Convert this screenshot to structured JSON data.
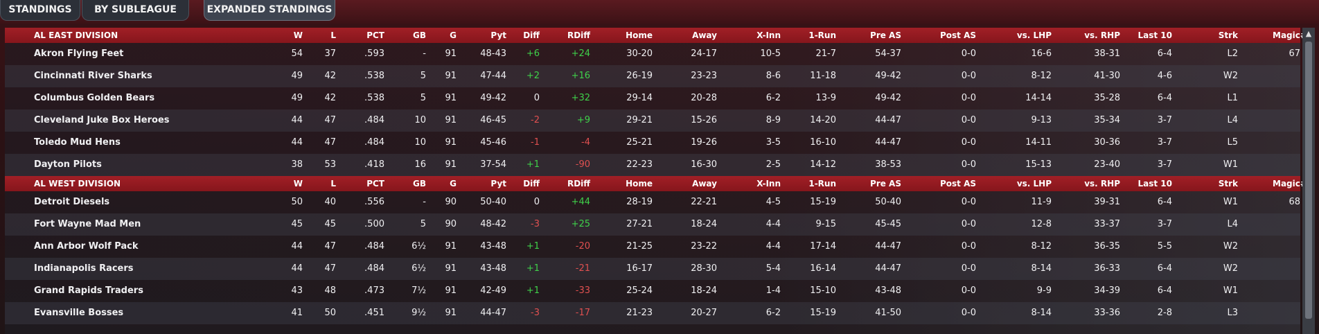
{
  "tabs": [
    {
      "label": "STANDINGS"
    },
    {
      "label": "BY SUBLEAGUE"
    },
    {
      "label": "EXPANDED STANDINGS"
    }
  ],
  "columns": [
    "W",
    "L",
    "PCT",
    "GB",
    "G",
    "Pyt",
    "Diff",
    "RDiff",
    "Home",
    "Away",
    "X-Inn",
    "1-Run",
    "Pre AS",
    "Post AS",
    "vs. LHP",
    "vs. RHP",
    "Last 10",
    "Strk",
    "Magic#"
  ],
  "scroll_up_icon": "chevron-up-icon",
  "colors": {
    "positive": "#3fd14a",
    "negative": "#e05050",
    "header": "#a11f26"
  },
  "divisions": [
    {
      "name": "AL EAST DIVISION",
      "teams": [
        {
          "team": "Akron  Flying Feet",
          "W": "54",
          "L": "37",
          "PCT": ".593",
          "GB": "-",
          "G": "91",
          "Pyt": "48-43",
          "Diff": "+6",
          "RDiff": "+24",
          "Home": "30-20",
          "Away": "24-17",
          "XInn": "10-5",
          "OneRun": "21-7",
          "PreAS": "54-37",
          "PostAS": "0-0",
          "vsLHP": "16-6",
          "vsRHP": "38-31",
          "Last10": "6-4",
          "Strk": "L2",
          "Magic": "67"
        },
        {
          "team": "Cincinnati River Sharks",
          "W": "49",
          "L": "42",
          "PCT": ".538",
          "GB": "5",
          "G": "91",
          "Pyt": "47-44",
          "Diff": "+2",
          "RDiff": "+16",
          "Home": "26-19",
          "Away": "23-23",
          "XInn": "8-6",
          "OneRun": "11-18",
          "PreAS": "49-42",
          "PostAS": "0-0",
          "vsLHP": "8-12",
          "vsRHP": "41-30",
          "Last10": "4-6",
          "Strk": "W2",
          "Magic": ""
        },
        {
          "team": "Columbus Golden Bears",
          "W": "49",
          "L": "42",
          "PCT": ".538",
          "GB": "5",
          "G": "91",
          "Pyt": "49-42",
          "Diff": "0",
          "RDiff": "+32",
          "Home": "29-14",
          "Away": "20-28",
          "XInn": "6-2",
          "OneRun": "13-9",
          "PreAS": "49-42",
          "PostAS": "0-0",
          "vsLHP": "14-14",
          "vsRHP": "35-28",
          "Last10": "6-4",
          "Strk": "L1",
          "Magic": ""
        },
        {
          "team": "Cleveland Juke Box Heroes",
          "W": "44",
          "L": "47",
          "PCT": ".484",
          "GB": "10",
          "G": "91",
          "Pyt": "46-45",
          "Diff": "-2",
          "RDiff": "+9",
          "Home": "29-21",
          "Away": "15-26",
          "XInn": "8-9",
          "OneRun": "14-20",
          "PreAS": "44-47",
          "PostAS": "0-0",
          "vsLHP": "9-13",
          "vsRHP": "35-34",
          "Last10": "3-7",
          "Strk": "L4",
          "Magic": ""
        },
        {
          "team": "Toledo  Mud Hens",
          "W": "44",
          "L": "47",
          "PCT": ".484",
          "GB": "10",
          "G": "91",
          "Pyt": "45-46",
          "Diff": "-1",
          "RDiff": "-4",
          "Home": "25-21",
          "Away": "19-26",
          "XInn": "3-5",
          "OneRun": "16-10",
          "PreAS": "44-47",
          "PostAS": "0-0",
          "vsLHP": "14-11",
          "vsRHP": "30-36",
          "Last10": "3-7",
          "Strk": "L5",
          "Magic": ""
        },
        {
          "team": "Dayton Pilots",
          "W": "38",
          "L": "53",
          "PCT": ".418",
          "GB": "16",
          "G": "91",
          "Pyt": "37-54",
          "Diff": "+1",
          "RDiff": "-90",
          "Home": "22-23",
          "Away": "16-30",
          "XInn": "2-5",
          "OneRun": "14-12",
          "PreAS": "38-53",
          "PostAS": "0-0",
          "vsLHP": "15-13",
          "vsRHP": "23-40",
          "Last10": "3-7",
          "Strk": "W1",
          "Magic": ""
        }
      ]
    },
    {
      "name": "AL WEST DIVISION",
      "teams": [
        {
          "team": "Detroit Diesels",
          "W": "50",
          "L": "40",
          "PCT": ".556",
          "GB": "-",
          "G": "90",
          "Pyt": "50-40",
          "Diff": "0",
          "RDiff": "+44",
          "Home": "28-19",
          "Away": "22-21",
          "XInn": "4-5",
          "OneRun": "15-19",
          "PreAS": "50-40",
          "PostAS": "0-0",
          "vsLHP": "11-9",
          "vsRHP": "39-31",
          "Last10": "6-4",
          "Strk": "W1",
          "Magic": "68"
        },
        {
          "team": "Fort Wayne Mad Men",
          "W": "45",
          "L": "45",
          "PCT": ".500",
          "GB": "5",
          "G": "90",
          "Pyt": "48-42",
          "Diff": "-3",
          "RDiff": "+25",
          "Home": "27-21",
          "Away": "18-24",
          "XInn": "4-4",
          "OneRun": "9-15",
          "PreAS": "45-45",
          "PostAS": "0-0",
          "vsLHP": "12-8",
          "vsRHP": "33-37",
          "Last10": "3-7",
          "Strk": "L4",
          "Magic": ""
        },
        {
          "team": "Ann Arbor Wolf Pack",
          "W": "44",
          "L": "47",
          "PCT": ".484",
          "GB": "6½",
          "G": "91",
          "Pyt": "43-48",
          "Diff": "+1",
          "RDiff": "-20",
          "Home": "21-25",
          "Away": "23-22",
          "XInn": "4-4",
          "OneRun": "17-14",
          "PreAS": "44-47",
          "PostAS": "0-0",
          "vsLHP": "8-12",
          "vsRHP": "36-35",
          "Last10": "5-5",
          "Strk": "W2",
          "Magic": ""
        },
        {
          "team": "Indianapolis Racers",
          "W": "44",
          "L": "47",
          "PCT": ".484",
          "GB": "6½",
          "G": "91",
          "Pyt": "43-48",
          "Diff": "+1",
          "RDiff": "-21",
          "Home": "16-17",
          "Away": "28-30",
          "XInn": "5-4",
          "OneRun": "16-14",
          "PreAS": "44-47",
          "PostAS": "0-0",
          "vsLHP": "8-14",
          "vsRHP": "36-33",
          "Last10": "6-4",
          "Strk": "W2",
          "Magic": ""
        },
        {
          "team": "Grand Rapids Traders",
          "W": "43",
          "L": "48",
          "PCT": ".473",
          "GB": "7½",
          "G": "91",
          "Pyt": "42-49",
          "Diff": "+1",
          "RDiff": "-33",
          "Home": "25-24",
          "Away": "18-24",
          "XInn": "1-4",
          "OneRun": "15-10",
          "PreAS": "43-48",
          "PostAS": "0-0",
          "vsLHP": "9-9",
          "vsRHP": "34-39",
          "Last10": "6-4",
          "Strk": "W1",
          "Magic": ""
        },
        {
          "team": "Evansville Bosses",
          "W": "41",
          "L": "50",
          "PCT": ".451",
          "GB": "9½",
          "G": "91",
          "Pyt": "44-47",
          "Diff": "-3",
          "RDiff": "-17",
          "Home": "21-23",
          "Away": "20-27",
          "XInn": "6-2",
          "OneRun": "15-19",
          "PreAS": "41-50",
          "PostAS": "0-0",
          "vsLHP": "8-14",
          "vsRHP": "33-36",
          "Last10": "2-8",
          "Strk": "L3",
          "Magic": ""
        }
      ]
    }
  ]
}
